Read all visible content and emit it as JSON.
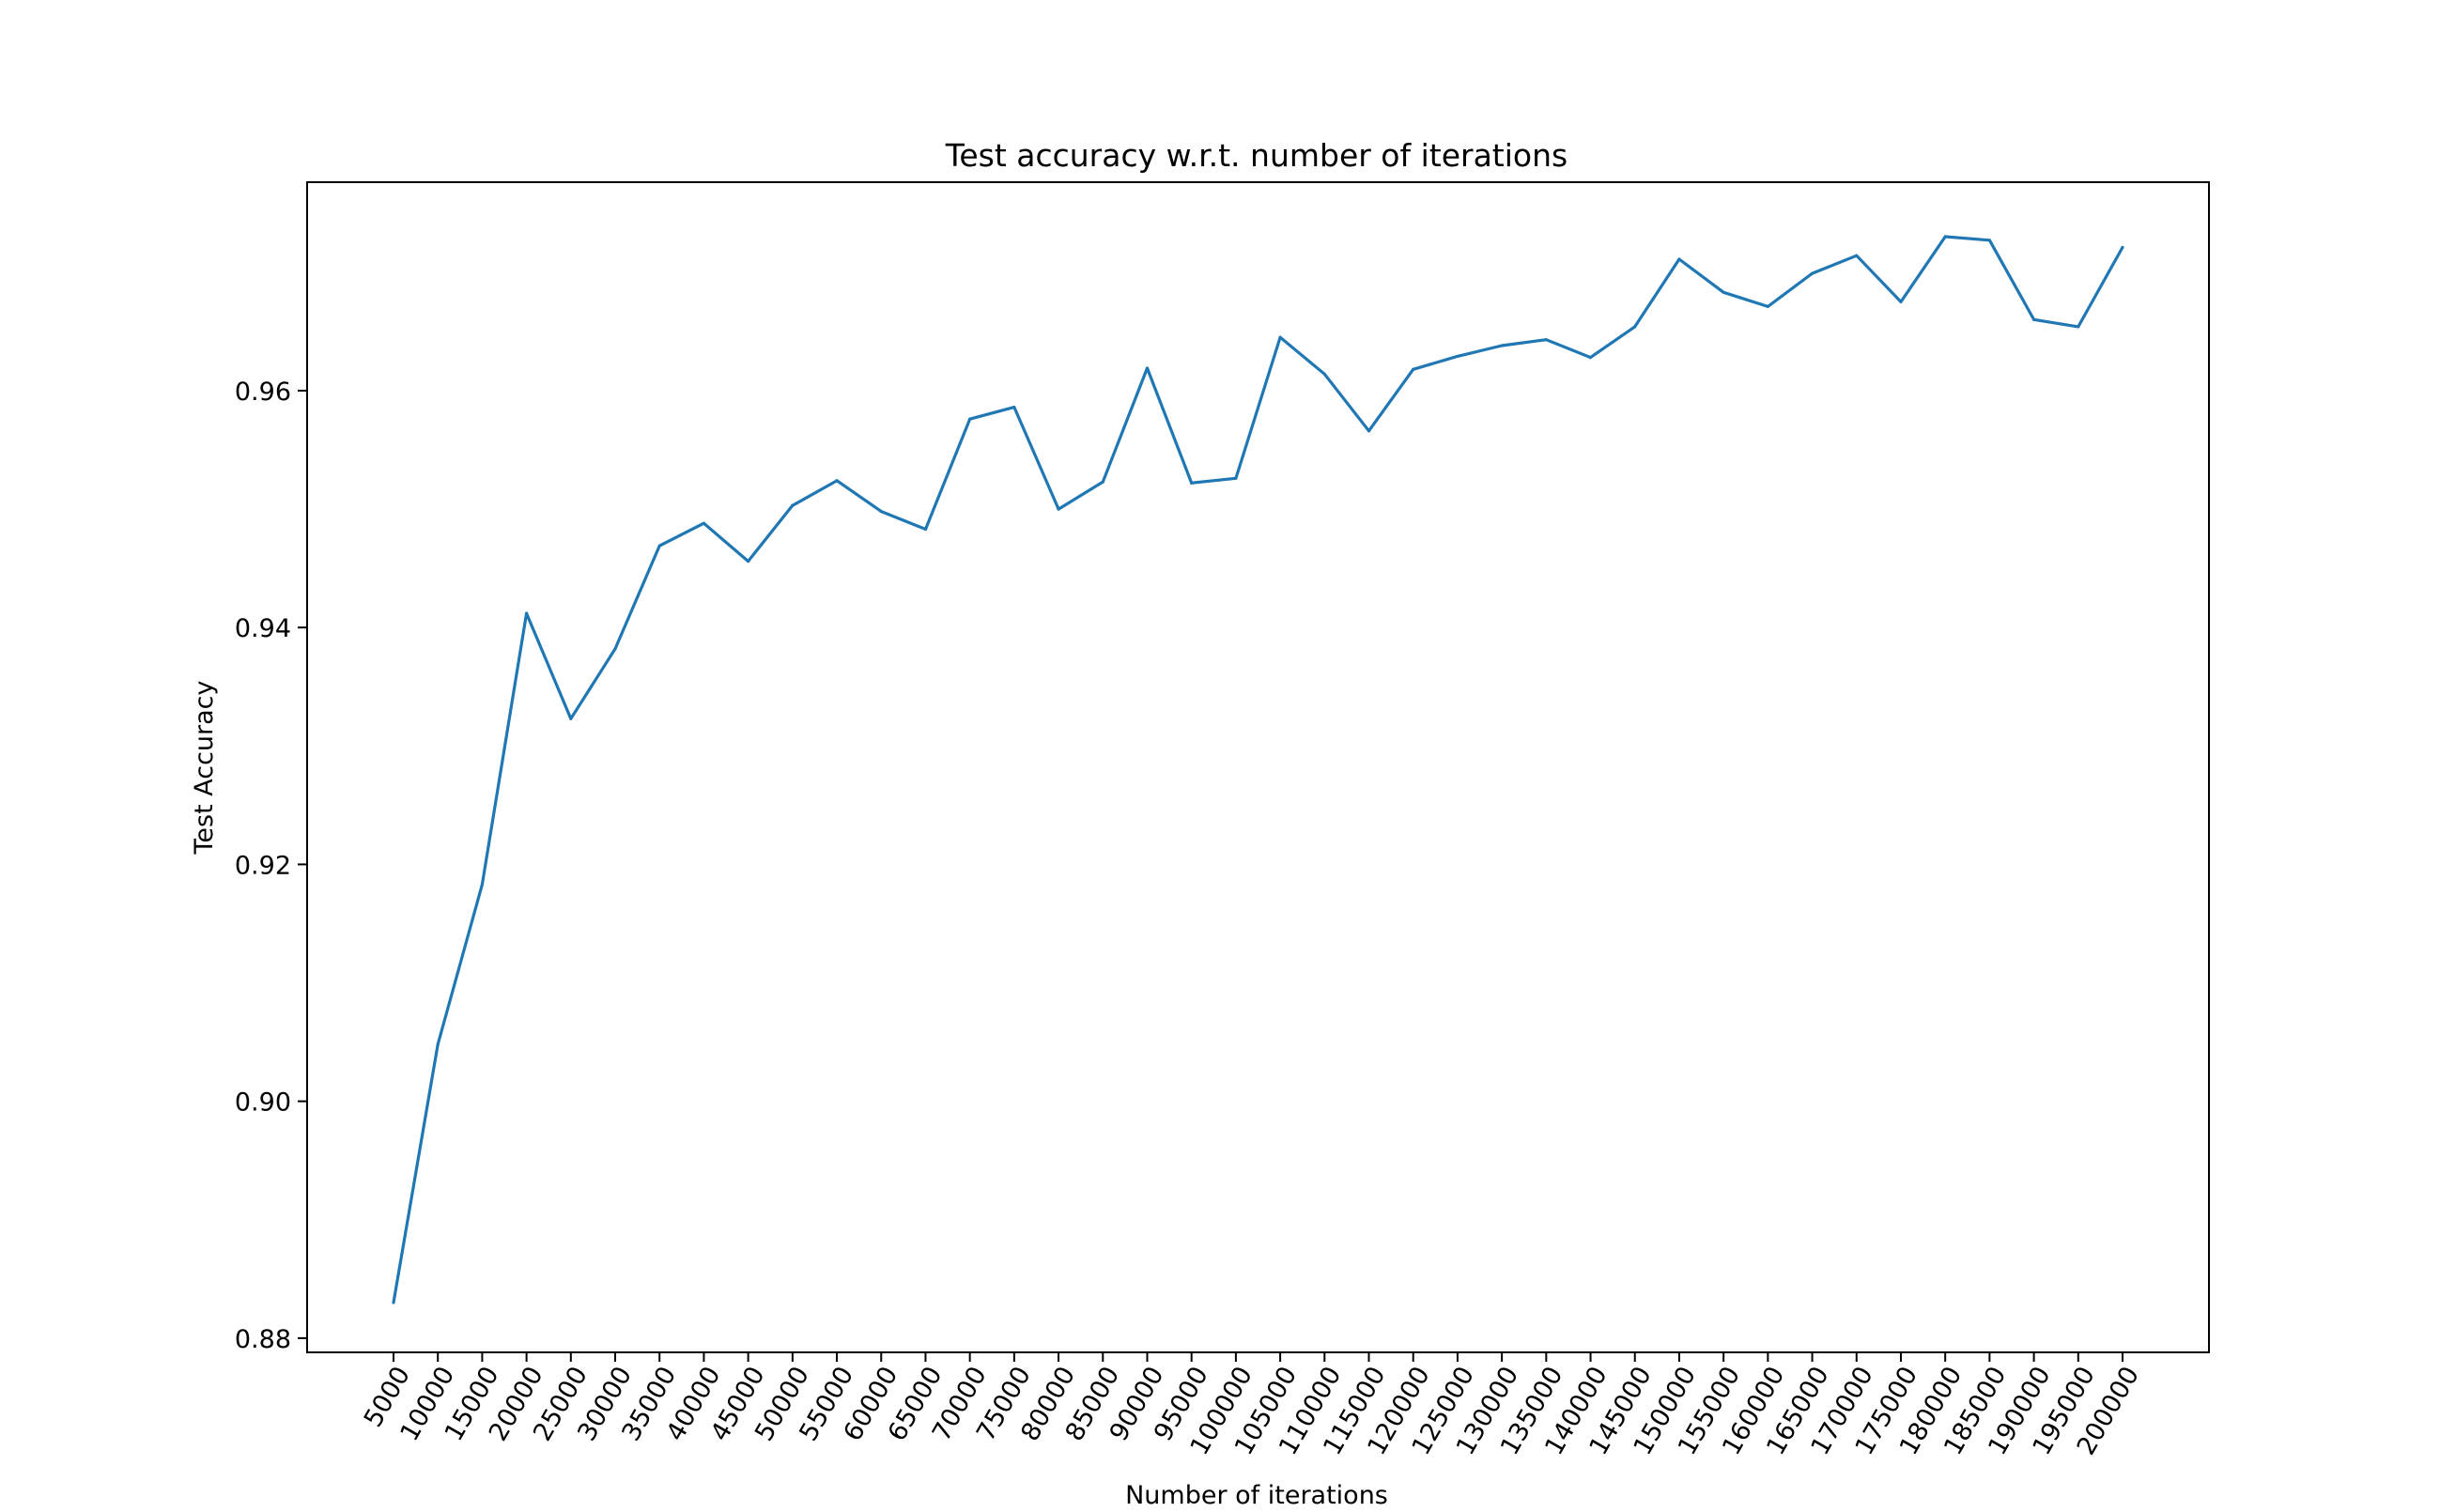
{
  "chart_data": {
    "type": "line",
    "title": "Test accuracy w.r.t. number of iterations",
    "xlabel": "Number of iterations",
    "ylabel": "Test Accuracy",
    "categories": [
      "5000",
      "10000",
      "15000",
      "20000",
      "25000",
      "30000",
      "35000",
      "40000",
      "45000",
      "50000",
      "55000",
      "60000",
      "65000",
      "70000",
      "75000",
      "80000",
      "85000",
      "90000",
      "95000",
      "100000",
      "105000",
      "110000",
      "115000",
      "120000",
      "125000",
      "130000",
      "135000",
      "140000",
      "145000",
      "150000",
      "155000",
      "160000",
      "165000",
      "170000",
      "175000",
      "180000",
      "185000",
      "190000",
      "195000",
      "200000"
    ],
    "series": [
      {
        "color": "#1f77b4",
        "values": [
          0.883,
          0.9048,
          0.9183,
          0.9412,
          0.9323,
          0.9382,
          0.9469,
          0.9488,
          0.9456,
          0.9503,
          0.9524,
          0.9498,
          0.9483,
          0.9576,
          0.9586,
          0.95,
          0.9523,
          0.9619,
          0.9522,
          0.9526,
          0.9645,
          0.9614,
          0.9566,
          0.9618,
          0.9629,
          0.9638,
          0.9643,
          0.9628,
          0.9654,
          0.9711,
          0.9683,
          0.9671,
          0.9699,
          0.9714,
          0.9675,
          0.973,
          0.9727,
          0.966,
          0.9654,
          0.9721
        ]
      }
    ],
    "yticks": [
      "0.88",
      "0.90",
      "0.92",
      "0.94",
      "0.96"
    ],
    "ylim": [
      0.8788,
      0.9776
    ],
    "grid": false,
    "legend": "none"
  }
}
